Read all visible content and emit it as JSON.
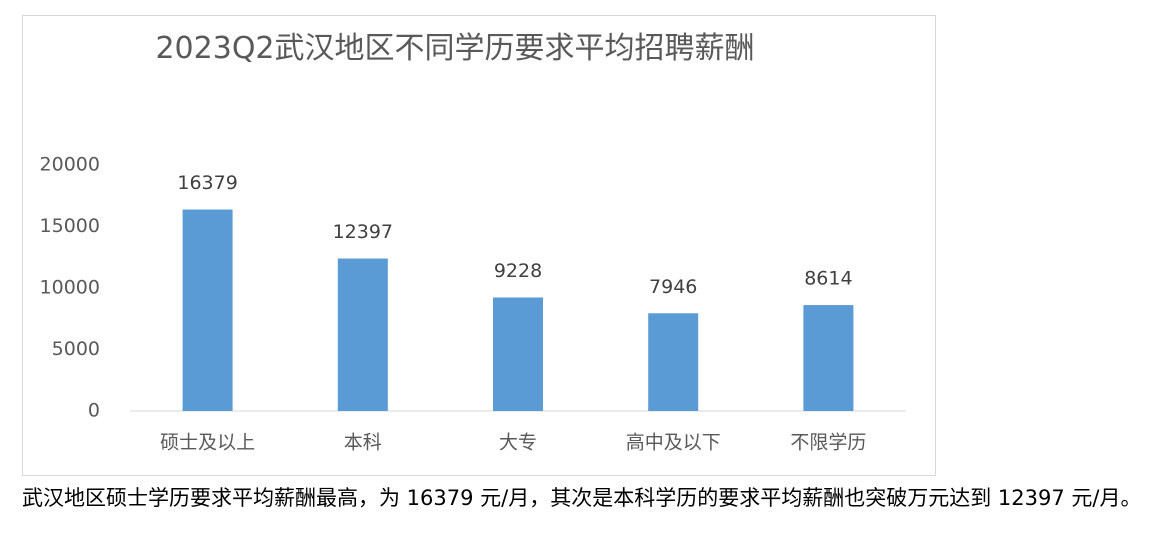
{
  "chart_data": {
    "type": "bar",
    "title": "2023Q2武汉地区不同学历要求平均招聘薪酬",
    "categories": [
      "硕士及以上",
      "本科",
      "大专",
      "高中及以下",
      "不限学历"
    ],
    "values": [
      16379,
      12397,
      9228,
      7946,
      8614
    ],
    "color": "#5b9bd5",
    "ylim": [
      0,
      20000
    ],
    "yticks": [
      0,
      5000,
      10000,
      15000,
      20000
    ],
    "grid": false
  },
  "paragraph": "武汉地区硕士学历要求平均薪酬最高，为 16379 元/月，其次是本科学历的要求平均薪酬也突破万元达到 12397 元/月。"
}
